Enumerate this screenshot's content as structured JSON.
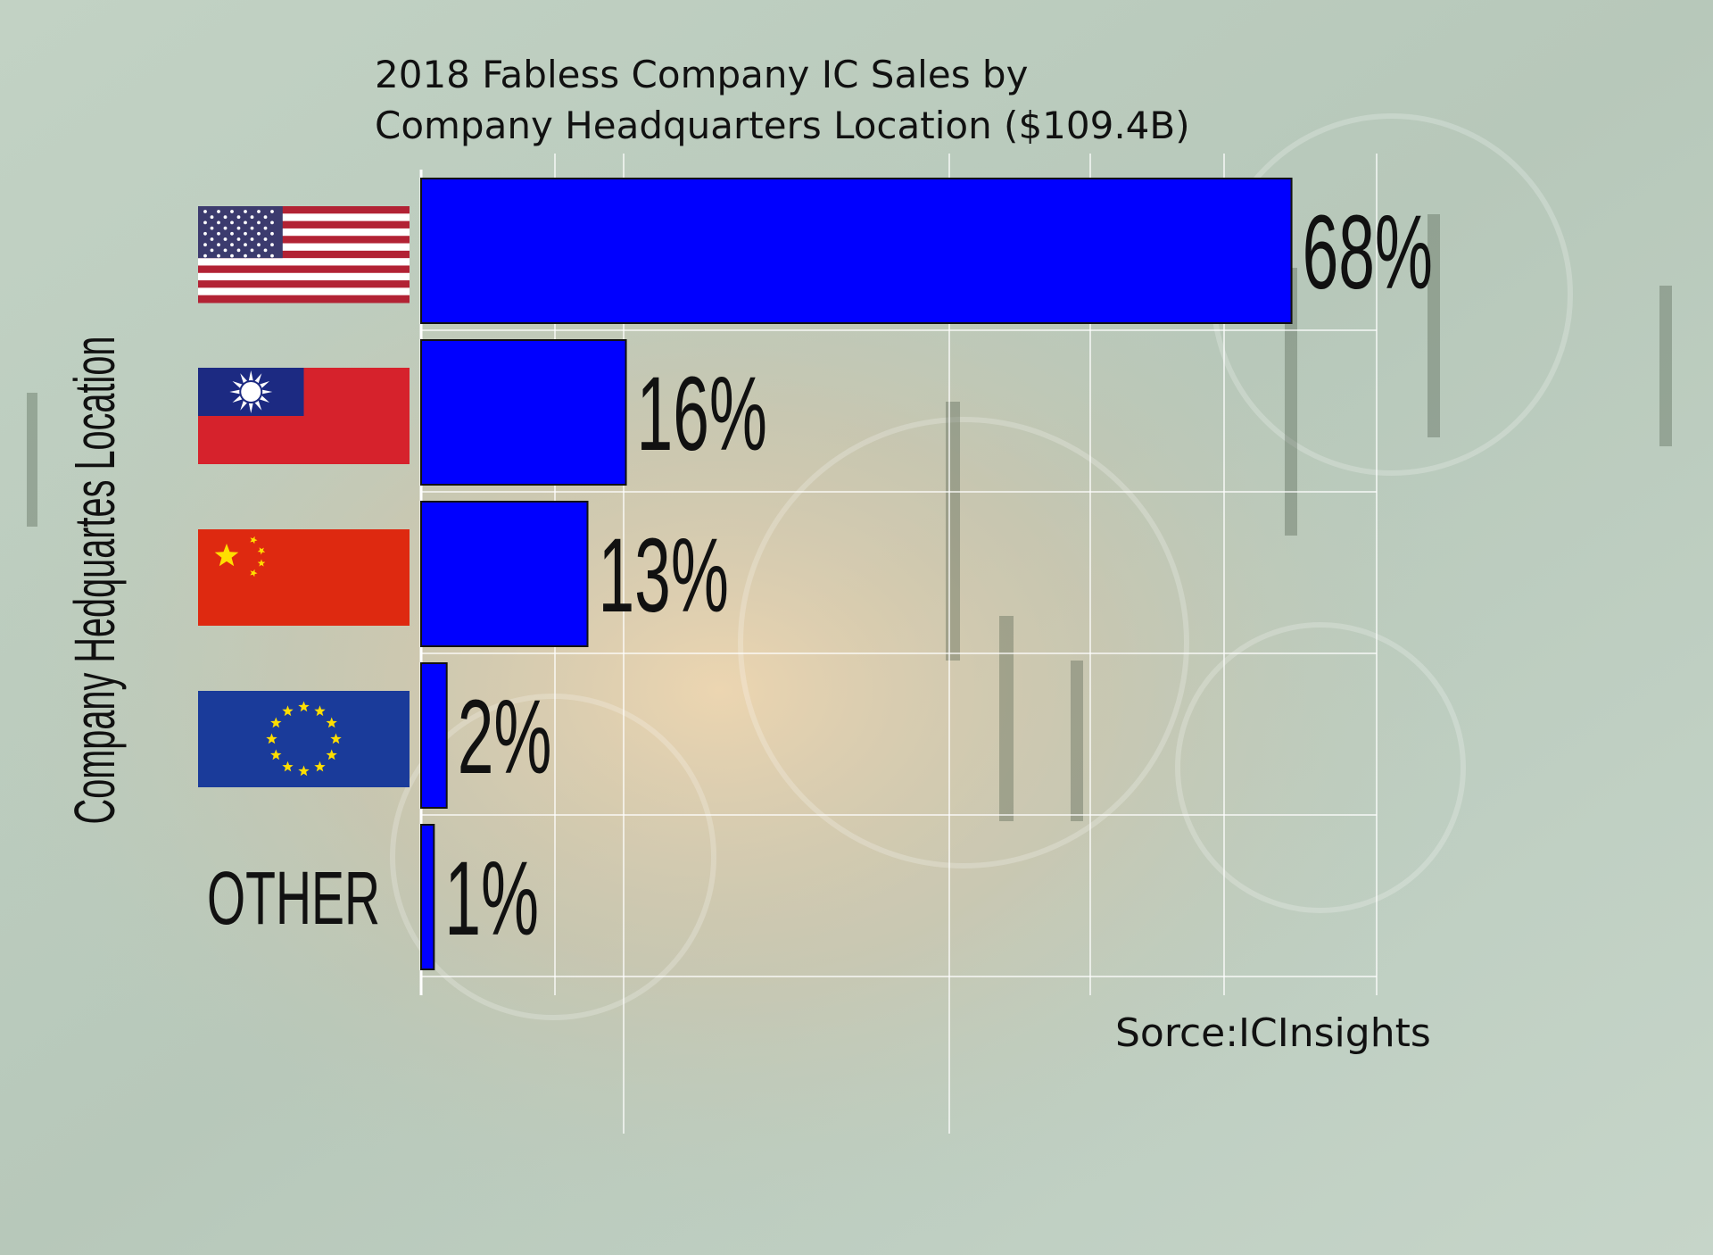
{
  "chart_data": {
    "type": "bar",
    "orientation": "horizontal",
    "title_lines": [
      "2018 Fabless Company IC Sales by",
      "Company Headquarters Location ($109.4B)"
    ],
    "ylabel": "Company Hedquartes Location",
    "categories": [
      {
        "flag": "usa-flag",
        "text": ""
      },
      {
        "flag": "taiwan-flag",
        "text": ""
      },
      {
        "flag": "china-flag",
        "text": ""
      },
      {
        "flag": "eu-flag",
        "text": ""
      },
      {
        "flag": "",
        "text": "OTHER"
      }
    ],
    "values": [
      68,
      16,
      13,
      2,
      1
    ],
    "value_labels": [
      "68%",
      "16%",
      "13%",
      "2%",
      "1%"
    ],
    "xlim": [
      0,
      75
    ],
    "grid": true,
    "bar_color": "#0000ff",
    "source": "Sorce:ICInsights"
  },
  "colors": {
    "background": "#b9c9bb",
    "flag_red": "#d6222c",
    "flag_blue": "#1c2a82",
    "eu_blue": "#1a3b9a",
    "star_yellow": "#ffde00"
  }
}
